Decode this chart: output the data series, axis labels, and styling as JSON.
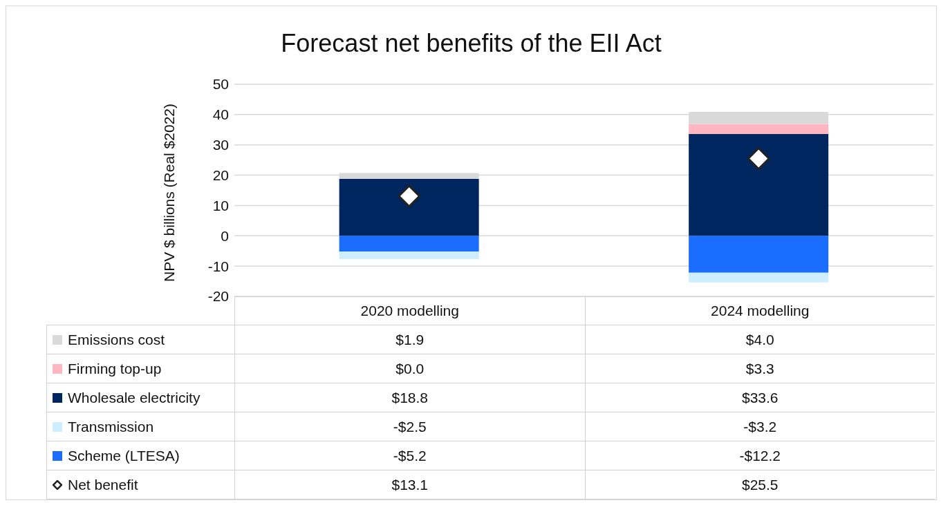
{
  "chart_data": {
    "type": "bar",
    "title": "Forecast net benefits of the EII Act",
    "ylabel": "NPV $ billions (Real $2022)",
    "categories": [
      "2020 modelling",
      "2024 modelling"
    ],
    "stacked": true,
    "ylim": [
      -20,
      50
    ],
    "yticks": [
      -20,
      -10,
      0,
      10,
      20,
      30,
      40,
      50
    ],
    "grid": "y",
    "legend": "bottom",
    "series": [
      {
        "name": "Scheme (LTESA)",
        "color": "#1a6dff",
        "values": [
          -5.2,
          -12.2
        ],
        "value_labels": [
          "-$5.2",
          "-$12.2"
        ]
      },
      {
        "name": "Transmission",
        "color": "#cceeff",
        "values": [
          -2.5,
          -3.2
        ],
        "value_labels": [
          "-$2.5",
          "-$3.2"
        ]
      },
      {
        "name": "Wholesale electricity",
        "color": "#002660",
        "values": [
          18.8,
          33.6
        ],
        "value_labels": [
          "$18.8",
          "$33.6"
        ]
      },
      {
        "name": "Firming top-up",
        "color": "#ffb6c1",
        "values": [
          0.0,
          3.3
        ],
        "value_labels": [
          "$0.0",
          "$3.3"
        ]
      },
      {
        "name": "Emissions cost",
        "color": "#d9d9d9",
        "values": [
          1.9,
          4.0
        ],
        "value_labels": [
          "$1.9",
          "$4.0"
        ]
      },
      {
        "name": "Net benefit",
        "type": "scatter",
        "marker": "diamond",
        "color": "#ffffff",
        "x": [
          "2020 modelling",
          "2024 modelling"
        ],
        "values": [
          13.1,
          25.5
        ],
        "value_labels": [
          "$13.1",
          "$25.5"
        ]
      }
    ]
  }
}
